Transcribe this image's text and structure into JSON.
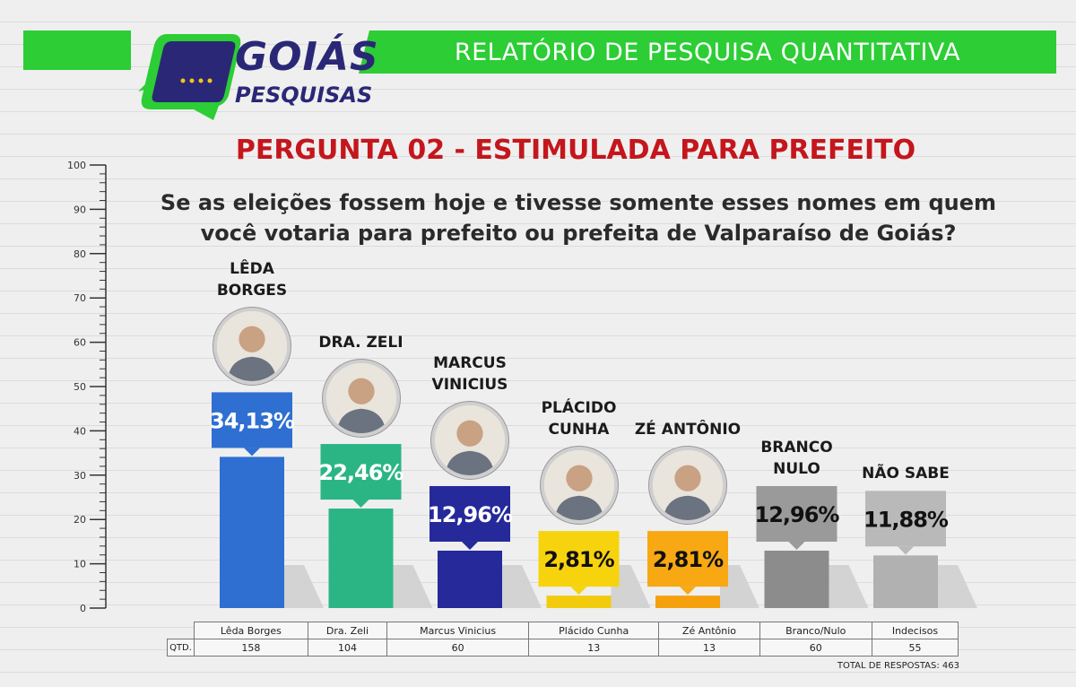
{
  "header": {
    "report_title": "RELATÓRIO DE PESQUISA QUANTITATIVA",
    "logo_line1": "GOIÁS",
    "logo_line2": "PESQUISAS"
  },
  "question": {
    "title": "PERGUNTA 02 - ESTIMULADA PARA PREFEITO",
    "text_line1": "Se as eleições fossem hoje e tivesse somente esses nomes em quem",
    "text_line2": "você votaria para prefeito ou prefeita de Valparaíso de Goiás?"
  },
  "chart_data": {
    "type": "bar",
    "ylim": [
      0,
      100
    ],
    "yticks": [
      "0",
      "10",
      "20",
      "30",
      "40",
      "50",
      "60",
      "70",
      "80",
      "90",
      "100"
    ],
    "categories": [
      "Lêda Borges",
      "Dra. Zeli",
      "Marcus Vinicius",
      "Plácido Cunha",
      "Zé Antônio",
      "Branco/Nulo",
      "Indecisos"
    ],
    "values": [
      34.13,
      22.46,
      12.96,
      2.81,
      2.81,
      12.96,
      11.88
    ],
    "value_labels": [
      "34,13%",
      "22,46%",
      "12,96%",
      "2,81%",
      "2,81%",
      "12,96%",
      "11,88%"
    ],
    "colors": [
      "#2e6fd1",
      "#2bb585",
      "#26299a",
      "#f2cc0c",
      "#f5a10e",
      "#8c8c8c",
      "#b1b1b1"
    ],
    "label_colors": [
      "#ffffff",
      "#ffffff",
      "#ffffff",
      "#111111",
      "#111111",
      "#111111",
      "#111111"
    ],
    "callout_colors": [
      "#2e6fd1",
      "#2bb585",
      "#26299a",
      "#f7d30e",
      "#f7a812",
      "#9a9a9a",
      "#b9b9b9"
    ],
    "name_line1": [
      "LÊDA",
      "DRA. ZELI",
      "MARCUS",
      "PLÁCIDO",
      "ZÉ ANTÔNIO",
      "BRANCO",
      "NÃO SABE"
    ],
    "name_line2": [
      "BORGES",
      "",
      "VINICIUS",
      "CUNHA",
      "",
      "NULO",
      ""
    ],
    "has_photo": [
      true,
      true,
      true,
      true,
      true,
      false,
      false
    ],
    "photo_icons": [
      "candidate-photo-icon",
      "candidate-photo-icon",
      "candidate-photo-icon",
      "candidate-photo-icon",
      "candidate-photo-icon"
    ]
  },
  "table": {
    "row_label": "QTD.",
    "names": [
      "Lêda Borges",
      "Dra. Zeli",
      "Marcus Vinicius",
      "Plácido Cunha",
      "Zé Antônio",
      "Branco/Nulo",
      "Indecisos"
    ],
    "counts": [
      "158",
      "104",
      "60",
      "13",
      "13",
      "60",
      "55"
    ],
    "total_label": "TOTAL DE RESPOSTAS: 463"
  }
}
